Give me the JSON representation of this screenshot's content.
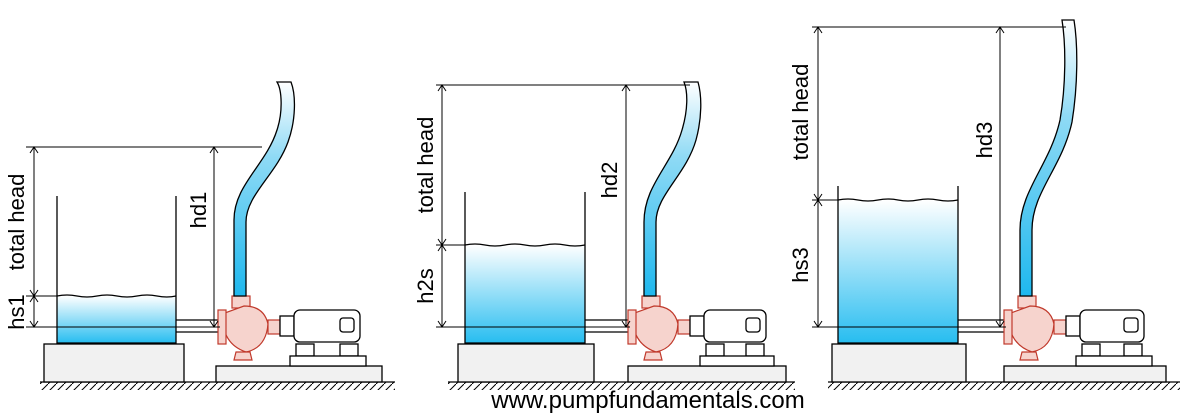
{
  "panels": [
    {
      "total_head_label": "total head",
      "suction_label": "hs1",
      "discharge_label": "hd1"
    },
    {
      "total_head_label": "total head",
      "suction_label": "h2s",
      "discharge_label": "hd2"
    },
    {
      "total_head_label": "total head",
      "suction_label": "hs3",
      "discharge_label": "hd3"
    }
  ],
  "footer": {
    "url": "www.pumpfundamentals.com"
  },
  "colors": {
    "water_top": "#ffffff",
    "water_bottom": "#27bdf0",
    "pump": "#e8493c",
    "ink": "#000000"
  }
}
